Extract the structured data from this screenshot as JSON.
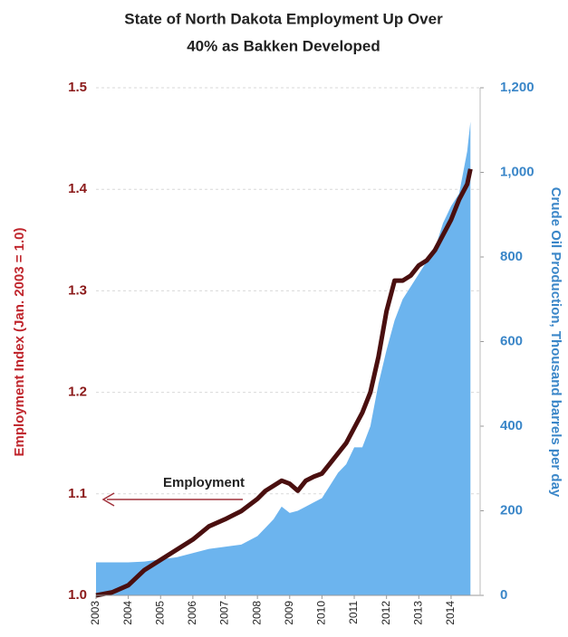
{
  "chart_data": {
    "type": "line-area",
    "title": [
      "State  of North Dakota Employment Up Over",
      "40% as Bakken Developed"
    ],
    "ylabel": "Employment Index (Jan. 2003 = 1.0)",
    "y2label": "Crude Oil Production, Thousand barrels per day",
    "annotation": "Employment",
    "x": [
      2003,
      2003.5,
      2004,
      2004.5,
      2005,
      2005.5,
      2006,
      2006.5,
      2007,
      2007.5,
      2008,
      2008.25,
      2008.5,
      2008.75,
      2009,
      2009.25,
      2009.5,
      2009.75,
      2010,
      2010.25,
      2010.5,
      2010.75,
      2011,
      2011.25,
      2011.5,
      2011.75,
      2012,
      2012.25,
      2012.5,
      2012.75,
      2013,
      2013.25,
      2013.5,
      2013.75,
      2014,
      2014.25,
      2014.5,
      2014.6
    ],
    "xlim": [
      2003,
      2014.9
    ],
    "xticks": [
      2003,
      2004,
      2005,
      2006,
      2007,
      2008,
      2009,
      2010,
      2011,
      2012,
      2013,
      2014
    ],
    "ylim": [
      1,
      1.5
    ],
    "yticks": [
      {
        "value": 1,
        "label": "1.0"
      },
      1.1,
      1.2,
      1.3,
      1.4,
      1.5
    ],
    "y2lim": [
      0,
      1200
    ],
    "y2ticks": [
      0,
      200,
      400,
      600,
      800,
      {
        "value": 1000,
        "label": "1,000"
      },
      {
        "value": 1200,
        "label": "1,200"
      }
    ],
    "grid": true,
    "series": [
      {
        "name": "Crude Oil Production",
        "color": "#6cb4ee",
        "axis": "y2",
        "kind": "area",
        "values": [
          78,
          78,
          78,
          80,
          85,
          90,
          100,
          110,
          115,
          120,
          140,
          160,
          180,
          210,
          195,
          200,
          210,
          220,
          230,
          260,
          290,
          310,
          350,
          350,
          400,
          500,
          580,
          650,
          700,
          730,
          760,
          790,
          820,
          880,
          920,
          950,
          1050,
          1120
        ]
      },
      {
        "name": "Employment",
        "color": "#4a0f0f",
        "axis": "y",
        "kind": "line",
        "values": [
          1,
          1.003,
          1.01,
          1.025,
          1.035,
          1.045,
          1.055,
          1.068,
          1.075,
          1.083,
          1.095,
          1.103,
          1.108,
          1.113,
          1.11,
          1.103,
          1.113,
          1.117,
          1.12,
          1.13,
          1.14,
          1.15,
          1.165,
          1.18,
          1.2,
          1.235,
          1.28,
          1.31,
          1.31,
          1.315,
          1.325,
          1.33,
          1.34,
          1.355,
          1.37,
          1.39,
          1.405,
          1.42
        ]
      }
    ]
  }
}
